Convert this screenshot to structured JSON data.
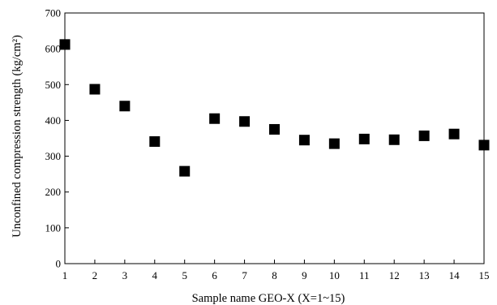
{
  "chart_data": {
    "type": "scatter",
    "title": "",
    "xlabel": "Sample name GEO-X (X=1~15)",
    "ylabel": "Unconfined compression strength (kg/cm²)",
    "xlim": [
      1,
      15
    ],
    "ylim": [
      0,
      700
    ],
    "x_ticks": [
      1,
      2,
      3,
      4,
      5,
      6,
      7,
      8,
      9,
      10,
      11,
      12,
      13,
      14,
      15
    ],
    "y_ticks": [
      0,
      100,
      200,
      300,
      400,
      500,
      600,
      700
    ],
    "grid": false,
    "legend": "none",
    "marker": "square",
    "marker_color": "#000000",
    "series": [
      {
        "x": [
          1,
          2,
          3,
          4,
          5,
          6,
          7,
          8,
          9,
          10,
          11,
          12,
          13,
          14,
          15
        ],
        "values": [
          612,
          487,
          440,
          341,
          258,
          405,
          397,
          375,
          345,
          335,
          348,
          346,
          357,
          362,
          331
        ]
      }
    ]
  }
}
